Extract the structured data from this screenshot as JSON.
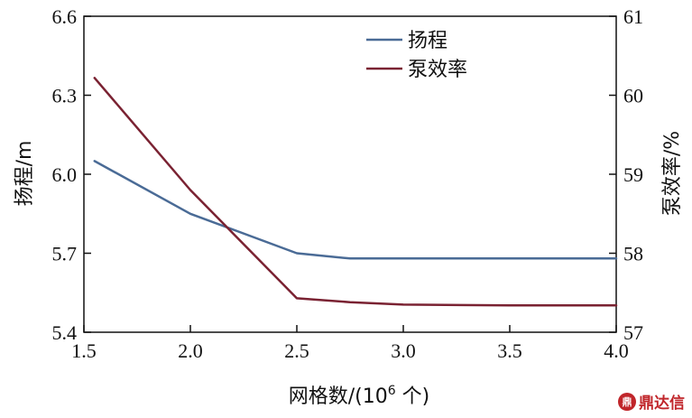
{
  "chart_data": {
    "type": "line",
    "xlabel_prefix": "网格数/(10",
    "xlabel_sup": "6",
    "xlabel_suffix": " 个)",
    "ylabel_left": "扬程/m",
    "ylabel_right": "泵效率/%",
    "xlim": [
      1.5,
      4.0
    ],
    "ylim_left": [
      5.4,
      6.6
    ],
    "ylim_right": [
      57,
      61
    ],
    "x_ticks": [
      "1.5",
      "2.0",
      "2.5",
      "3.0",
      "3.5",
      "4.0"
    ],
    "y_left_ticks": [
      "5.4",
      "5.7",
      "6.0",
      "6.3",
      "6.6"
    ],
    "y_right_ticks": [
      "57",
      "58",
      "59",
      "60",
      "61"
    ],
    "legend_position": "top-center",
    "grid": false,
    "series": [
      {
        "name": "扬程",
        "axis": "left",
        "color": "#4a6b96",
        "x": [
          1.55,
          2.0,
          2.5,
          2.75,
          3.0,
          3.5,
          4.0
        ],
        "y": [
          6.05,
          5.85,
          5.7,
          5.68,
          5.68,
          5.68,
          5.68
        ]
      },
      {
        "name": "泵效率",
        "axis": "right",
        "color": "#7a2232",
        "x": [
          1.55,
          2.0,
          2.5,
          2.75,
          3.0,
          3.5,
          4.0
        ],
        "y": [
          60.22,
          58.8,
          57.43,
          57.38,
          57.35,
          57.34,
          57.34
        ]
      }
    ]
  },
  "watermark": {
    "icon_name": "ding-logo-icon",
    "icon_text": "鼎",
    "text": "鼎达信"
  }
}
